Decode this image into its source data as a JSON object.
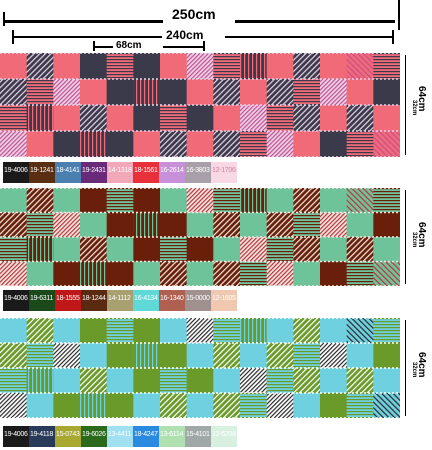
{
  "dimensions": {
    "total_width": "250cm",
    "print_width": "240cm",
    "repeat_width": "68cm",
    "panel_height": "64cm",
    "repeat_height": "32cm"
  },
  "panels": [
    {
      "colors": {
        "a": "#3a3a4a",
        "b": "#f06a78",
        "c": "#c94d8f",
        "d": "#e8d4e8",
        "bg": "#ffffff"
      },
      "swatches": [
        {
          "code": "19-4006",
          "color": "#1a1a1a",
          "text": "#ffffff"
        },
        {
          "code": "19-1241",
          "color": "#5a2e12",
          "text": "#ffffff"
        },
        {
          "code": "18-4141",
          "color": "#4a7fb0",
          "text": "#ffffff"
        },
        {
          "code": "19-2431",
          "color": "#6a2a7a",
          "text": "#ffffff"
        },
        {
          "code": "14-1318",
          "color": "#f2a8b8",
          "text": "#ffffff"
        },
        {
          "code": "18-1561",
          "color": "#e8303a",
          "text": "#ffffff"
        },
        {
          "code": "16-2614",
          "color": "#c890d8",
          "text": "#ffffff"
        },
        {
          "code": "16-3803",
          "color": "#a8a0a8",
          "text": "#ffffff"
        },
        {
          "code": "12-1706",
          "color": "#f8d8e4",
          "text": "#d080a0"
        }
      ]
    },
    {
      "colors": {
        "a": "#6a1f0a",
        "b": "#6fc39a",
        "c": "#c0303a",
        "d": "#f0e8e0",
        "bg": "#ffffff"
      },
      "swatches": [
        {
          "code": "19-4006",
          "color": "#1a1a1a",
          "text": "#ffffff"
        },
        {
          "code": "19-6311",
          "color": "#1a4a1a",
          "text": "#ffffff"
        },
        {
          "code": "18-1555",
          "color": "#c01818",
          "text": "#ffffff"
        },
        {
          "code": "18-1244",
          "color": "#5a2a10",
          "text": "#ffffff"
        },
        {
          "code": "14-1112",
          "color": "#a8a070",
          "text": "#ffffff"
        },
        {
          "code": "16-4134",
          "color": "#60d8d8",
          "text": "#ffffff"
        },
        {
          "code": "16-1340",
          "color": "#b06050",
          "text": "#ffffff"
        },
        {
          "code": "15-0000",
          "color": "#a09090",
          "text": "#ffffff"
        },
        {
          "code": "12-1605",
          "color": "#f0c8b0",
          "text": "#ffffff"
        }
      ]
    },
    {
      "colors": {
        "a": "#6a9a2a",
        "b": "#6fd0e0",
        "c": "#2a2a2a",
        "d": "#ffffff",
        "bg": "#ffffff"
      },
      "swatches": [
        {
          "code": "19-4006",
          "color": "#1a1a1a",
          "text": "#ffffff"
        },
        {
          "code": "19-4118",
          "color": "#2a3a5a",
          "text": "#ffffff"
        },
        {
          "code": "15-0743",
          "color": "#a8a830",
          "text": "#ffffff"
        },
        {
          "code": "19-6026",
          "color": "#2a6a1a",
          "text": "#ffffff"
        },
        {
          "code": "13-4411",
          "color": "#a0e0f0",
          "text": "#ffffff"
        },
        {
          "code": "18-4247",
          "color": "#2a8ae0",
          "text": "#ffffff"
        },
        {
          "code": "13-6114",
          "color": "#b0e0b0",
          "text": "#ffffff"
        },
        {
          "code": "15-4101",
          "color": "#a0a8a8",
          "text": "#ffffff"
        },
        {
          "code": "12-6208",
          "color": "#d8f0e0",
          "text": "#ffffff"
        }
      ]
    }
  ]
}
